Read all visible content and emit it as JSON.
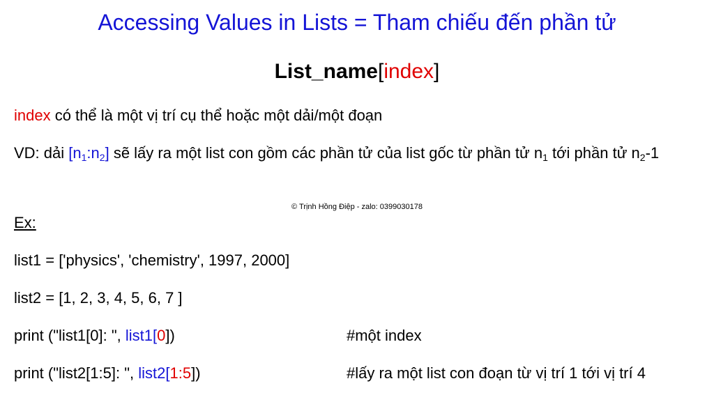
{
  "title": "Accessing Values in Lists = Tham chiếu đến phần tử",
  "syntax": {
    "name": "List_name",
    "open": "[",
    "param": "index",
    "close": "]"
  },
  "line1": [
    "index",
    " có thể là một vị trí cụ thể hoặc một dải/một đoạn"
  ],
  "line2": [
    "VD: dải ",
    "[n",
    "1",
    ":n",
    "2",
    "]",
    " sẽ lấy ra một list con gồm các phần tử của list gốc từ phần tử n",
    "1",
    " tới phần tử n",
    "2",
    "-1"
  ],
  "credit": "© Trịnh Hồng Điệp - zalo: 0399030178",
  "ex": "Ex:",
  "code": [
    "list1 = ['physics', 'chemistry', 1997, 2000]",
    "list2 = [1, 2, 3, 4, 5, 6, 7 ]"
  ],
  "print1": {
    "parts": [
      "print (\"list1[0]: \", ",
      "list1",
      "[",
      "0",
      "])"
    ],
    "comment": "#một index"
  },
  "print2": {
    "parts": [
      "print (\"list2[1:5]: \", ",
      "list2",
      "[",
      "1:5",
      "])"
    ],
    "comment": "#lấy ra một list con đoạn từ vị trí 1 tới vị trí 4"
  }
}
